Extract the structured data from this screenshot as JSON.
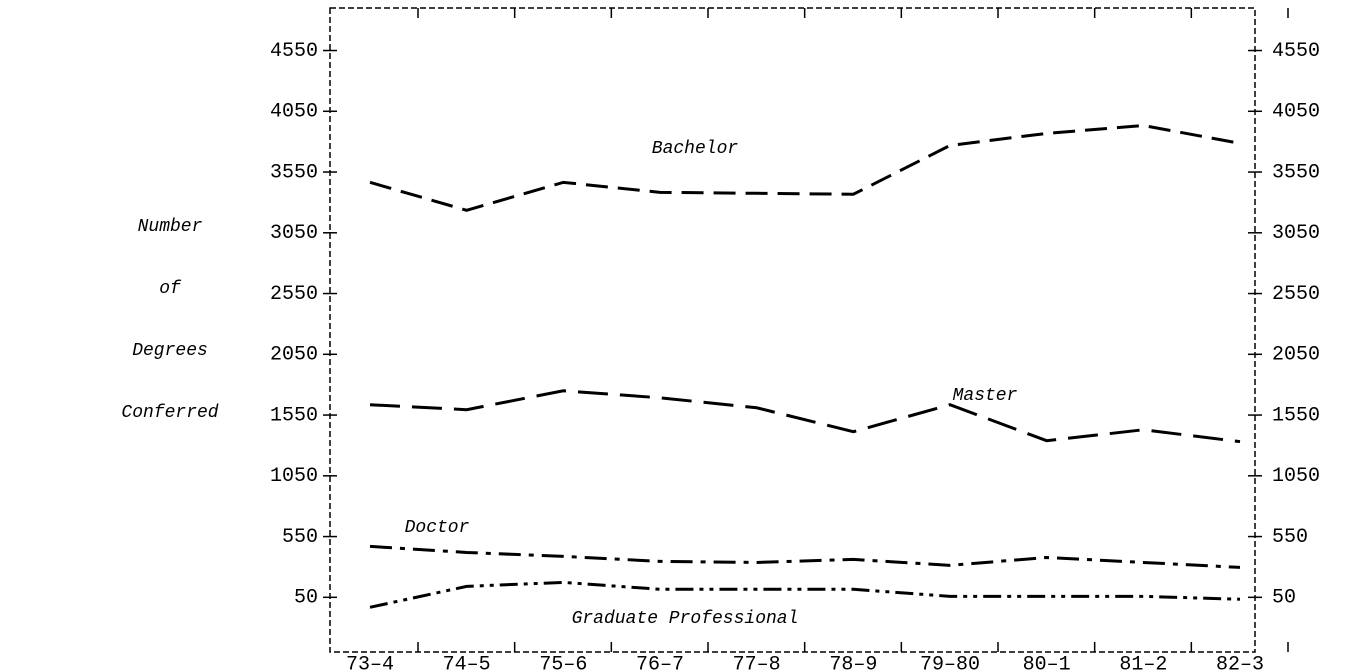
{
  "chart_data": {
    "type": "line",
    "ylabel": [
      "Number",
      "of",
      "Degrees",
      "Conferred"
    ],
    "categories": [
      "73–4",
      "74–5",
      "75–6",
      "76–7",
      "77–8",
      "78–9",
      "79–80",
      "80–1",
      "81–2",
      "82–3"
    ],
    "series": [
      {
        "name": "Bachelor",
        "color": "#000000",
        "values": [
          3465,
          3235,
          3465,
          3383,
          3375,
          3367,
          3769,
          3868,
          3933,
          3786
        ]
      },
      {
        "name": "Master",
        "color": "#000000",
        "values": [
          1635,
          1594,
          1750,
          1692,
          1610,
          1413,
          1635,
          1339,
          1429,
          1331
        ]
      },
      {
        "name": "Doctor",
        "color": "#000000",
        "values": [
          469,
          419,
          387,
          346,
          337,
          362,
          313,
          378,
          337,
          296
        ]
      },
      {
        "name": "Graduate Professional",
        "color": "#000000",
        "values": [
          -32,
          140,
          173,
          116,
          116,
          116,
          58,
          58,
          58,
          34
        ]
      }
    ],
    "ylim": [
      -400,
      4900
    ],
    "yticks": [
      50,
      550,
      1050,
      1550,
      2050,
      2550,
      3050,
      3550,
      4050,
      4550
    ],
    "right_axis": true
  }
}
